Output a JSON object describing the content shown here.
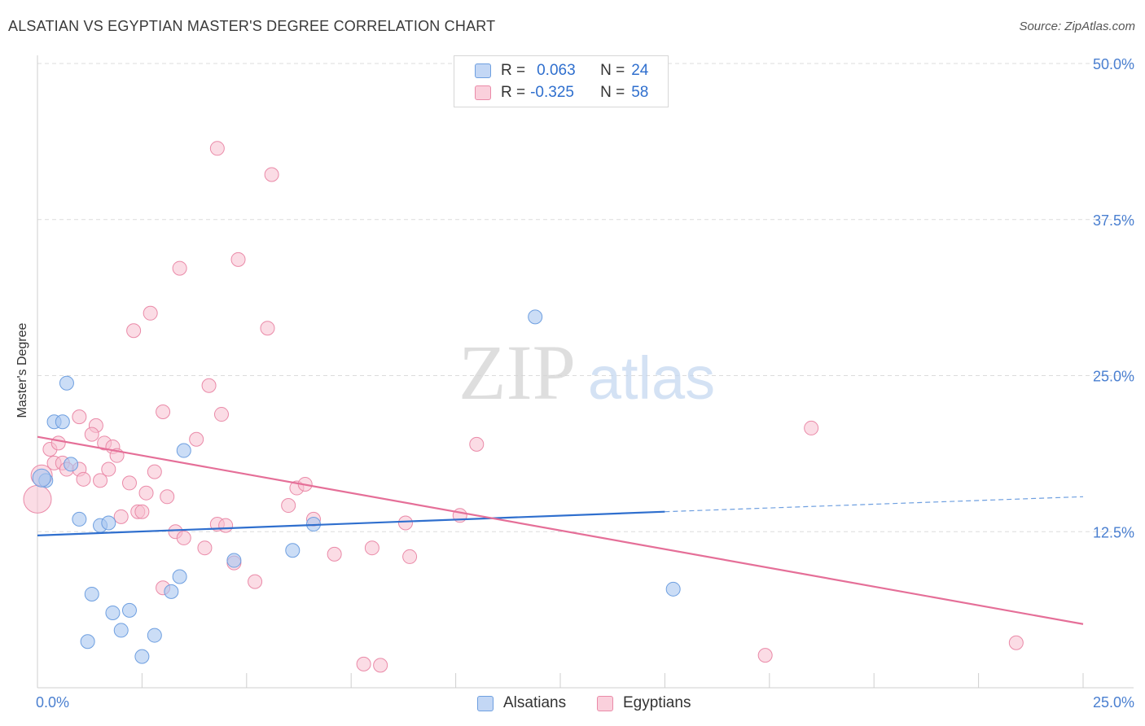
{
  "title": "ALSATIAN VS EGYPTIAN MASTER'S DEGREE CORRELATION CHART",
  "source": "Source: ZipAtlas.com",
  "watermark": {
    "zip": "ZIP",
    "atlas": "atlas"
  },
  "legend": [
    {
      "r_label": "R =",
      "r_value": "0.063",
      "n_label": "N =",
      "n_value": "24",
      "color": "#a9c7f0",
      "border": "#6e9fe0"
    },
    {
      "r_label": "R =",
      "r_value": "-0.325",
      "n_label": "N =",
      "n_value": "58",
      "color": "#f7bfd0",
      "border": "#ea8aa8"
    }
  ],
  "bottom_legend": [
    "Alsatians",
    "Egyptians"
  ],
  "chart_data": {
    "type": "scatter",
    "title": "ALSATIAN VS EGYPTIAN MASTER'S DEGREE CORRELATION CHART",
    "xlabel": "",
    "ylabel": "Master's Degree",
    "xlim": [
      0,
      25
    ],
    "ylim": [
      0,
      50
    ],
    "x_tick_labels": [
      "0.0%",
      "25.0%"
    ],
    "y_tick_labels": [
      "12.5%",
      "25.0%",
      "37.5%",
      "50.0%"
    ],
    "y_ticks": [
      12.5,
      25.0,
      37.5,
      50.0
    ],
    "grid": true,
    "legend_position": "top-center",
    "series": [
      {
        "name": "Alsatians",
        "color": "#6e9fe0",
        "fill": "#a9c7f0",
        "trend": {
          "x": [
            0,
            15
          ],
          "y": [
            12.2,
            14.1
          ],
          "extrapolated_to": [
            25,
            15.3
          ]
        },
        "points": [
          [
            0.2,
            16.6
          ],
          [
            0.1,
            16.8
          ],
          [
            0.4,
            21.3
          ],
          [
            0.6,
            21.3
          ],
          [
            0.7,
            24.4
          ],
          [
            0.8,
            17.9
          ],
          [
            1.0,
            13.5
          ],
          [
            1.5,
            13.0
          ],
          [
            1.7,
            13.2
          ],
          [
            3.5,
            19.0
          ],
          [
            3.4,
            8.9
          ],
          [
            3.2,
            7.7
          ],
          [
            1.3,
            7.5
          ],
          [
            1.8,
            6.0
          ],
          [
            2.2,
            6.2
          ],
          [
            2.0,
            4.6
          ],
          [
            1.2,
            3.7
          ],
          [
            2.8,
            4.2
          ],
          [
            2.5,
            2.5
          ],
          [
            4.7,
            10.2
          ],
          [
            6.1,
            11.0
          ],
          [
            6.6,
            13.1
          ],
          [
            11.9,
            29.7
          ],
          [
            15.2,
            7.9
          ]
        ]
      },
      {
        "name": "Egyptians",
        "color": "#e56f98",
        "fill": "#f7bfd0",
        "trend": {
          "x": [
            0,
            25
          ],
          "y": [
            20.1,
            5.1
          ]
        },
        "points": [
          [
            4.3,
            43.2
          ],
          [
            5.6,
            41.1
          ],
          [
            3.4,
            33.6
          ],
          [
            4.8,
            34.3
          ],
          [
            2.7,
            30.0
          ],
          [
            2.3,
            28.6
          ],
          [
            5.5,
            28.8
          ],
          [
            4.1,
            24.2
          ],
          [
            3.0,
            22.1
          ],
          [
            4.4,
            21.9
          ],
          [
            1.0,
            21.7
          ],
          [
            1.4,
            21.0
          ],
          [
            1.3,
            20.3
          ],
          [
            1.6,
            19.6
          ],
          [
            1.8,
            19.3
          ],
          [
            3.8,
            19.9
          ],
          [
            0.3,
            19.1
          ],
          [
            0.5,
            19.6
          ],
          [
            0.4,
            18.0
          ],
          [
            0.6,
            18.0
          ],
          [
            0.7,
            17.5
          ],
          [
            1.0,
            17.5
          ],
          [
            1.1,
            16.7
          ],
          [
            1.5,
            16.6
          ],
          [
            1.7,
            17.5
          ],
          [
            1.9,
            18.6
          ],
          [
            2.2,
            16.4
          ],
          [
            2.8,
            17.3
          ],
          [
            0.1,
            17.0
          ],
          [
            0.0,
            15.1
          ],
          [
            2.6,
            15.6
          ],
          [
            3.1,
            15.3
          ],
          [
            2.0,
            13.7
          ],
          [
            2.4,
            14.1
          ],
          [
            2.5,
            14.1
          ],
          [
            3.3,
            12.5
          ],
          [
            3.5,
            12.0
          ],
          [
            4.0,
            11.2
          ],
          [
            4.3,
            13.1
          ],
          [
            4.7,
            10.0
          ],
          [
            5.2,
            8.5
          ],
          [
            6.0,
            14.6
          ],
          [
            6.2,
            16.0
          ],
          [
            6.4,
            16.3
          ],
          [
            6.6,
            13.5
          ],
          [
            7.1,
            10.7
          ],
          [
            8.0,
            11.2
          ],
          [
            8.8,
            13.2
          ],
          [
            8.9,
            10.5
          ],
          [
            10.1,
            13.8
          ],
          [
            10.5,
            19.5
          ],
          [
            3.0,
            8.0
          ],
          [
            18.5,
            20.8
          ],
          [
            23.4,
            3.6
          ],
          [
            17.4,
            2.6
          ],
          [
            7.8,
            1.9
          ],
          [
            8.2,
            1.8
          ],
          [
            4.5,
            13.0
          ]
        ]
      }
    ]
  }
}
